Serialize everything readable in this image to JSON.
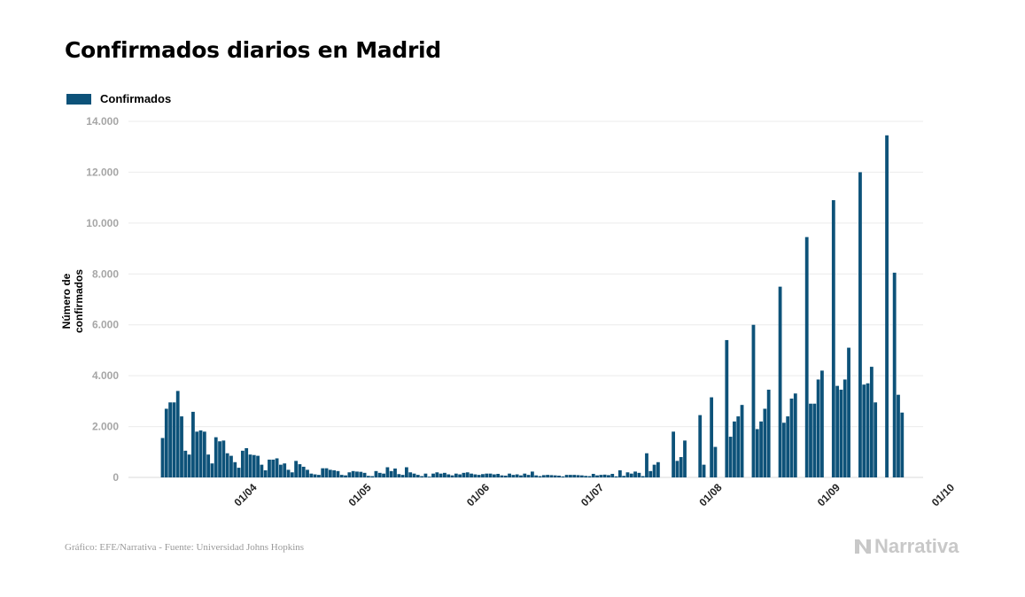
{
  "title": "Confirmados diarios en Madrid",
  "source": "Gráfico: EFE/Narrativa - Fuente: Universidad Johns Hopkins",
  "brand": "Narrativa",
  "colors": {
    "bar": "#0d5279",
    "grid": "#ebebeb",
    "brand": "#c8c8c8"
  },
  "chart_data": {
    "type": "bar",
    "title": "Confirmados diarios en Madrid",
    "ylabel": "Número de confirmados",
    "xlabel": "",
    "legend": {
      "position": "top-left",
      "entries": [
        "Confirmados"
      ]
    },
    "grid": true,
    "ylim": [
      0,
      14000
    ],
    "yticks": [
      0,
      2000,
      4000,
      6000,
      8000,
      10000,
      12000,
      14000
    ],
    "ytick_labels": [
      "0",
      "2.000",
      "4.000",
      "6.000",
      "8.000",
      "10.000",
      "12.000",
      "14.000"
    ],
    "x_start": "2020-03-09",
    "xticks": [
      {
        "date": "2020-04-01",
        "label": "01/04"
      },
      {
        "date": "2020-05-01",
        "label": "01/05"
      },
      {
        "date": "2020-06-01",
        "label": "01/06"
      },
      {
        "date": "2020-07-01",
        "label": "01/07"
      },
      {
        "date": "2020-08-01",
        "label": "01/08"
      },
      {
        "date": "2020-09-01",
        "label": "01/09"
      },
      {
        "date": "2020-10-01",
        "label": "01/10"
      }
    ],
    "series": [
      {
        "name": "Confirmados",
        "values": [
          1550,
          2700,
          2950,
          2950,
          3400,
          2400,
          1050,
          900,
          2580,
          1800,
          1850,
          1800,
          900,
          550,
          1580,
          1420,
          1450,
          950,
          850,
          600,
          380,
          1050,
          1150,
          900,
          880,
          850,
          500,
          280,
          700,
          700,
          750,
          500,
          550,
          300,
          200,
          650,
          520,
          420,
          300,
          150,
          120,
          100,
          360,
          360,
          300,
          280,
          250,
          100,
          80,
          200,
          250,
          230,
          220,
          180,
          60,
          50,
          250,
          180,
          150,
          400,
          250,
          350,
          130,
          100,
          400,
          200,
          150,
          100,
          50,
          150,
          30,
          150,
          200,
          150,
          180,
          120,
          80,
          150,
          120,
          180,
          200,
          150,
          120,
          100,
          130,
          150,
          150,
          120,
          140,
          80,
          70,
          150,
          100,
          120,
          80,
          150,
          100,
          230,
          80,
          50,
          90,
          100,
          90,
          80,
          70,
          40,
          100,
          100,
          100,
          90,
          80,
          60,
          50,
          140,
          80,
          100,
          110,
          90,
          140,
          40,
          280,
          60,
          200,
          150,
          230,
          180,
          50,
          950,
          250,
          500,
          600,
          0,
          0,
          0,
          1800,
          650,
          800,
          1450,
          0,
          0,
          0,
          2450,
          500,
          0,
          3150,
          1200,
          0,
          0,
          5400,
          1600,
          2200,
          2400,
          2850,
          0,
          0,
          6000,
          1900,
          2200,
          2700,
          3450,
          0,
          0,
          7500,
          2150,
          2400,
          3100,
          3300,
          0,
          0,
          9450,
          2900,
          2900,
          3850,
          4200,
          0,
          0,
          10900,
          3600,
          3450,
          3850,
          5100,
          0,
          0,
          12000,
          3650,
          3700,
          4350,
          2950,
          0,
          0,
          13450,
          0,
          8050,
          3250,
          2550
        ]
      }
    ]
  }
}
